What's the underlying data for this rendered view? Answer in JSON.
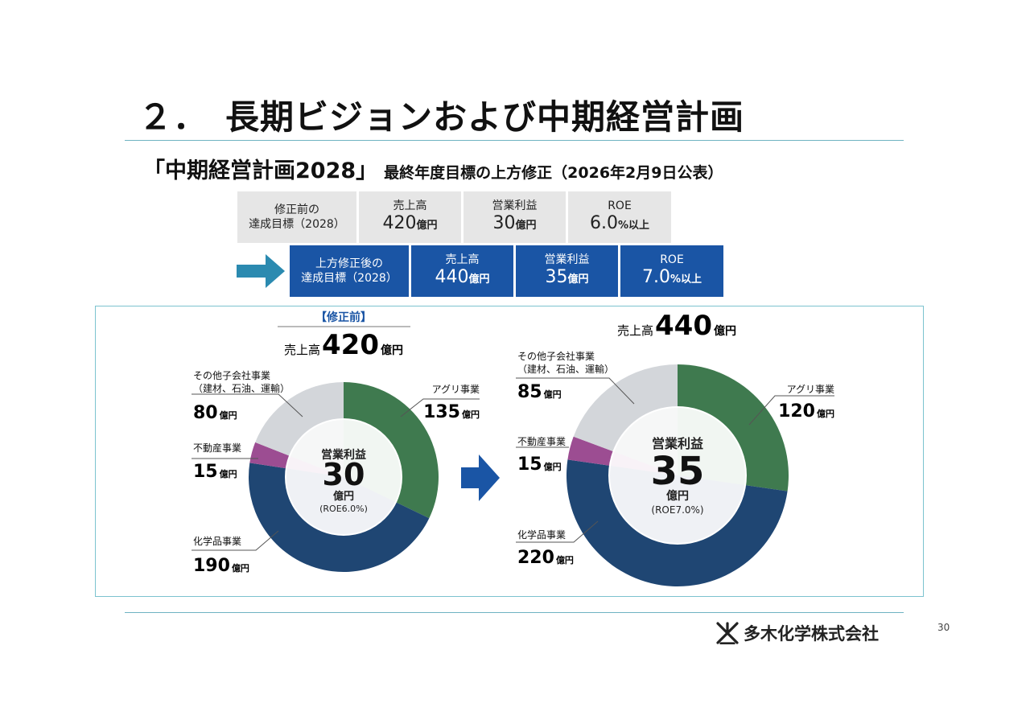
{
  "header": {
    "title": "２．　長期ビジョンおよび中期経営計画",
    "subtitle_main": "「中期経営計画2028」",
    "subtitle_tail": "最終年度目標の上方修正（2026年2月9日公表）"
  },
  "targets": {
    "before": {
      "label_line1": "修正前の",
      "label_line2": "達成目標（2028）",
      "items": [
        {
          "label": "売上高",
          "value": "420",
          "unit": "億円"
        },
        {
          "label": "営業利益",
          "value": "30",
          "unit": "億円"
        },
        {
          "label": "ROE",
          "value": "6.0",
          "unit": "%以上"
        }
      ]
    },
    "after": {
      "label_line1": "上方修正後の",
      "label_line2": "達成目標（2028）",
      "items": [
        {
          "label": "売上高",
          "value": "440",
          "unit": "億円"
        },
        {
          "label": "営業利益",
          "value": "35",
          "unit": "億円"
        },
        {
          "label": "ROE",
          "value": "7.0",
          "unit": "%以上"
        }
      ]
    }
  },
  "colors": {
    "agri": "#3f7a4f",
    "chemical": "#1f4673",
    "realestate": "#9c4d92",
    "other": "#d3d6da",
    "accent_blue": "#1a55a5",
    "arrow_teal": "#2b8ab0"
  },
  "chart_data": [
    {
      "type": "pie",
      "tag": "【修正前】",
      "total_label": "売上高",
      "total_value": "420",
      "total_unit": "億円",
      "center_label": "営業利益",
      "center_value": "30",
      "center_unit": "億円",
      "center_note": "(ROE6.0%)",
      "slices": [
        {
          "name": "アグリ事業",
          "value": 135,
          "unit": "億円"
        },
        {
          "name": "化学品事業",
          "value": 190,
          "unit": "億円"
        },
        {
          "name": "不動産事業",
          "value": 15,
          "unit": "億円"
        },
        {
          "name": "その他子会社事業",
          "sub": "（建材、石油、運輸）",
          "value": 80,
          "unit": "億円"
        }
      ]
    },
    {
      "type": "pie",
      "total_label": "売上高",
      "total_value": "440",
      "total_unit": "億円",
      "center_label": "営業利益",
      "center_value": "35",
      "center_unit": "億円",
      "center_note": "(ROE7.0%)",
      "slices": [
        {
          "name": "アグリ事業",
          "value": 120,
          "unit": "億円"
        },
        {
          "name": "化学品事業",
          "value": 220,
          "unit": "億円"
        },
        {
          "name": "不動産事業",
          "value": 15,
          "unit": "億円"
        },
        {
          "name": "その他子会社事業",
          "sub": "（建材、石油、運輸）",
          "value": 85,
          "unit": "億円"
        }
      ]
    }
  ],
  "footer": {
    "company": "多木化学株式会社",
    "page_number": "30"
  }
}
